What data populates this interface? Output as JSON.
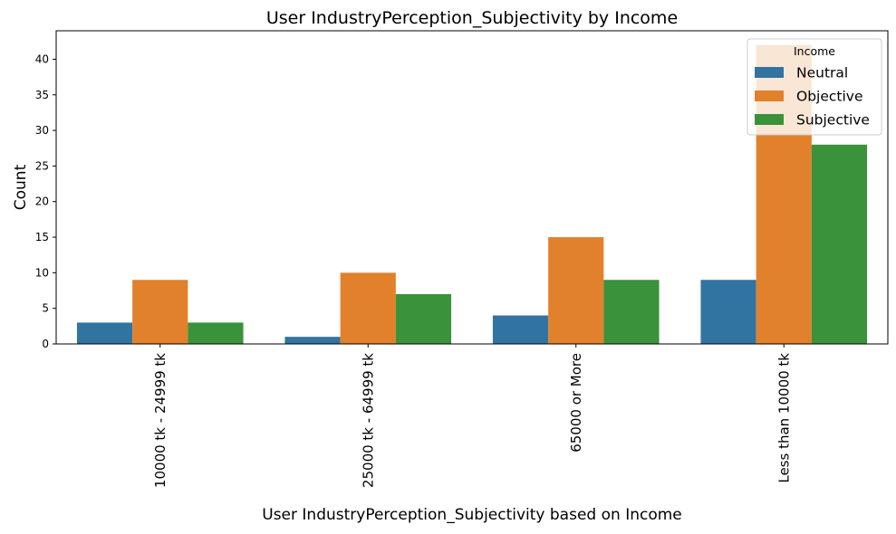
{
  "chart_data": {
    "type": "bar",
    "title": "User IndustryPerception_Subjectivity by Income",
    "xlabel": "User IndustryPerception_Subjectivity based on Income",
    "ylabel": "Count",
    "categories": [
      "10000 tk - 24999 tk",
      "25000 tk - 64999 tk",
      "65000 or More",
      "Less than 10000 tk"
    ],
    "series": [
      {
        "name": "Neutral",
        "values": [
          3,
          1,
          4,
          9
        ],
        "color": "#3274a1"
      },
      {
        "name": "Objective",
        "values": [
          9,
          10,
          15,
          42
        ],
        "color": "#e1812c"
      },
      {
        "name": "Subjective",
        "values": [
          3,
          7,
          9,
          28
        ],
        "color": "#3a923a"
      }
    ],
    "yticks": [
      0,
      5,
      10,
      15,
      20,
      25,
      30,
      35,
      40
    ],
    "ylim": [
      0,
      44
    ],
    "grid": false,
    "legend": {
      "title": "Income",
      "placement": "top-right"
    }
  }
}
